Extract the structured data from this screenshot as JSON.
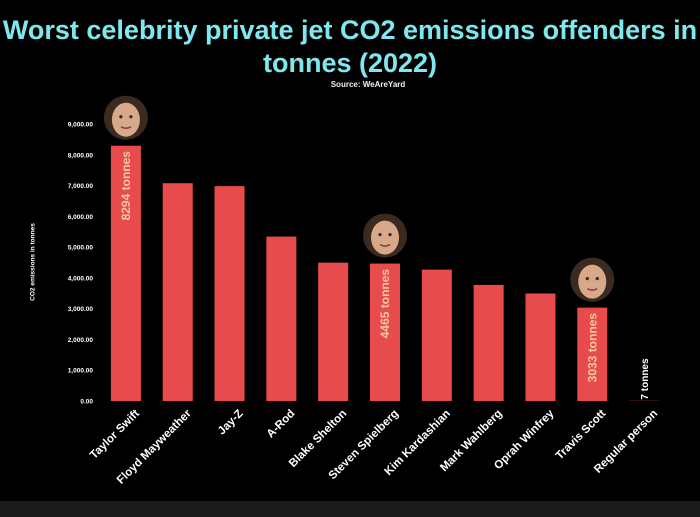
{
  "chart_data": {
    "type": "bar",
    "title": "Worst celebrity private jet CO2 emissions offenders in tonnes (2022)",
    "subtitle": "Source: WeAreYard",
    "xlabel": "",
    "ylabel": "CO2 emissions in tonnes",
    "ylim": [
      0,
      9000
    ],
    "yticks": [
      "0.00",
      "1,000.00",
      "2,000.00",
      "3,000.00",
      "4,000.00",
      "5,000.00",
      "6,000.00",
      "7,000.00",
      "8,000.00",
      "9,000.00"
    ],
    "grid": false,
    "legend": "none",
    "categories": [
      "Taylor Swift",
      "Floyd Mayweather",
      "Jay-Z",
      "A-Rod",
      "Blake Shelton",
      "Steven Spielberg",
      "Kim Kardashian",
      "Mark Wahlberg",
      "Oprah Winfrey",
      "Travis Scott",
      "Regular person"
    ],
    "values": [
      8294,
      7076,
      6981,
      5342,
      4495,
      4465,
      4268,
      3772,
      3493,
      3033,
      7
    ],
    "data_labels": [
      "8294 tonnes",
      "",
      "",
      "",
      "",
      "4465 tonnes",
      "",
      "",
      "",
      "3033 tonnes",
      "7 tonnes"
    ],
    "photos": [
      "Taylor Swift",
      "Steven Spielberg",
      "Travis Scott"
    ]
  },
  "colors": {
    "bar": "#e84b4b",
    "title": "#7fe8ee",
    "bar_label": "#f2c9a0",
    "background": "#000000"
  }
}
